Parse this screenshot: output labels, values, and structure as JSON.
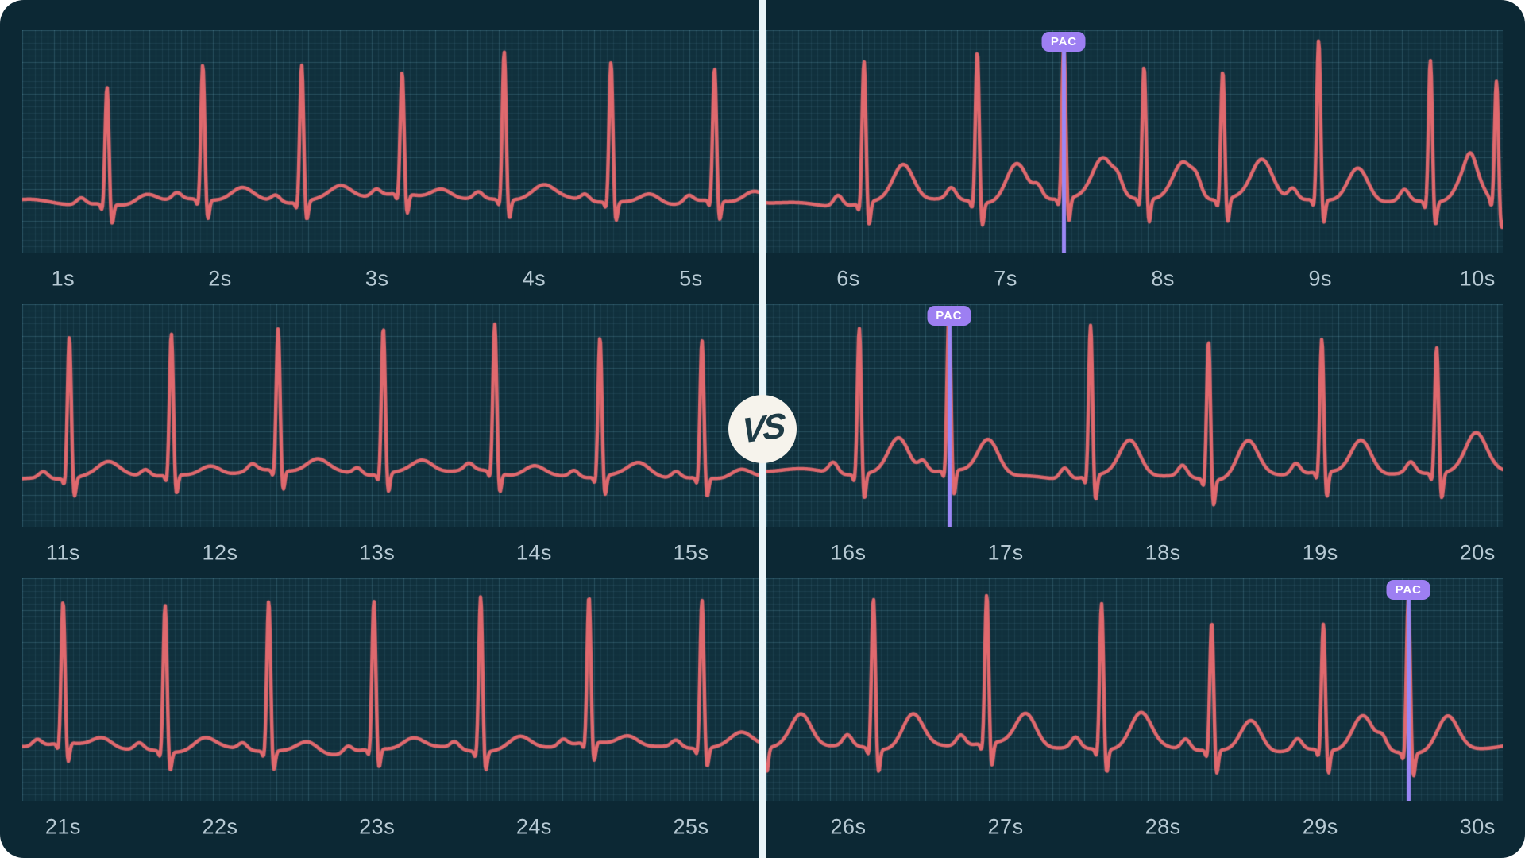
{
  "vs_badge": {
    "label": "VS"
  },
  "pac_annotation_label": "PAC",
  "colors": {
    "page_bg": "#ffffff",
    "card_bg": "#0c2834",
    "grid_bg": "#10303d",
    "grid_minor": "rgba(125,190,215,0.10)",
    "grid_major": "rgba(125,190,215,0.22)",
    "ecg_line": "#e0696e",
    "pac_line": "#9b87f5",
    "pac_badge_bg": "#9d7ff2",
    "pac_badge_text": "#ffffff",
    "divider": "#e9f4f8",
    "vs_circle_bg": "#f6f3ec",
    "vs_text": "#1e3b46",
    "tick_text": "#b6c9d3"
  },
  "chart_data": {
    "type": "line",
    "unit_x": "seconds",
    "grid": "on",
    "baseline_frac": 0.765,
    "panels": [
      {
        "id": "row1-left",
        "side": "left",
        "seed": 11,
        "t_start": 0.74,
        "t_end": 5.43,
        "tick_labels": [
          {
            "text": "1s",
            "t": 1
          },
          {
            "text": "2s",
            "t": 2
          },
          {
            "text": "3s",
            "t": 3
          },
          {
            "text": "4s",
            "t": 4
          },
          {
            "text": "5s",
            "t": 5
          }
        ],
        "p_amp": 0.03,
        "t_amp": 0.05,
        "s_amp": 0.1,
        "q_amp": 0.04,
        "noise": 0.016,
        "beats": [
          {
            "t": 1.28,
            "r": 0.53
          },
          {
            "t": 1.89,
            "r": 0.61
          },
          {
            "t": 2.52,
            "r": 0.62
          },
          {
            "t": 3.16,
            "r": 0.55
          },
          {
            "t": 3.81,
            "r": 0.67
          },
          {
            "t": 4.49,
            "r": 0.63
          },
          {
            "t": 5.15,
            "r": 0.6
          }
        ],
        "pacs": []
      },
      {
        "id": "row1-right",
        "side": "right",
        "seed": 21,
        "t_start": 5.48,
        "t_end": 10.16,
        "tick_labels": [
          {
            "text": "6s",
            "t": 6
          },
          {
            "text": "7s",
            "t": 7
          },
          {
            "text": "8s",
            "t": 8
          },
          {
            "text": "9s",
            "t": 9
          },
          {
            "text": "10s",
            "t": 10
          }
        ],
        "p_amp": 0.05,
        "t_amp": 0.165,
        "s_amp": 0.12,
        "q_amp": 0.045,
        "noise": 0.014,
        "beats": [
          {
            "t": 6.1,
            "r": 0.64
          },
          {
            "t": 6.82,
            "r": 0.68
          },
          {
            "t": 7.37,
            "r": 0.7
          },
          {
            "t": 7.88,
            "r": 0.6
          },
          {
            "t": 8.38,
            "r": 0.58
          },
          {
            "t": 8.99,
            "r": 0.72
          },
          {
            "t": 9.7,
            "r": 0.64
          },
          {
            "t": 10.12,
            "r": 0.55
          }
        ],
        "pacs": [
          {
            "t": 7.37,
            "label": "PAC"
          }
        ]
      },
      {
        "id": "row2-left",
        "side": "left",
        "seed": 12,
        "t_start": 10.74,
        "t_end": 15.43,
        "tick_labels": [
          {
            "text": "11s",
            "t": 11
          },
          {
            "text": "12s",
            "t": 12
          },
          {
            "text": "13s",
            "t": 13
          },
          {
            "text": "14s",
            "t": 14
          },
          {
            "text": "15s",
            "t": 15
          }
        ],
        "p_amp": 0.03,
        "t_amp": 0.05,
        "s_amp": 0.1,
        "q_amp": 0.04,
        "noise": 0.015,
        "beats": [
          {
            "t": 11.04,
            "r": 0.64
          },
          {
            "t": 11.69,
            "r": 0.64
          },
          {
            "t": 12.37,
            "r": 0.64
          },
          {
            "t": 13.04,
            "r": 0.66
          },
          {
            "t": 13.75,
            "r": 0.67
          },
          {
            "t": 14.42,
            "r": 0.63
          },
          {
            "t": 15.07,
            "r": 0.62
          }
        ],
        "pacs": []
      },
      {
        "id": "row2-right",
        "side": "right",
        "seed": 22,
        "t_start": 15.48,
        "t_end": 20.16,
        "tick_labels": [
          {
            "text": "16s",
            "t": 16
          },
          {
            "text": "17s",
            "t": 17
          },
          {
            "text": "18s",
            "t": 18
          },
          {
            "text": "19s",
            "t": 19
          },
          {
            "text": "20s",
            "t": 20
          }
        ],
        "p_amp": 0.05,
        "t_amp": 0.16,
        "s_amp": 0.13,
        "q_amp": 0.045,
        "noise": 0.014,
        "beats": [
          {
            "t": 16.07,
            "r": 0.66
          },
          {
            "t": 16.64,
            "r": 0.72
          },
          {
            "t": 17.54,
            "r": 0.68
          },
          {
            "t": 18.29,
            "r": 0.63
          },
          {
            "t": 19.01,
            "r": 0.6
          },
          {
            "t": 19.74,
            "r": 0.57
          }
        ],
        "pacs": [
          {
            "t": 16.64,
            "label": "PAC"
          }
        ]
      },
      {
        "id": "row3-left",
        "side": "left",
        "seed": 13,
        "t_start": 20.74,
        "t_end": 25.43,
        "tick_labels": [
          {
            "text": "21s",
            "t": 21
          },
          {
            "text": "22s",
            "t": 22
          },
          {
            "text": "23s",
            "t": 23
          },
          {
            "text": "24s",
            "t": 24
          },
          {
            "text": "25s",
            "t": 25
          }
        ],
        "p_amp": 0.03,
        "t_amp": 0.05,
        "s_amp": 0.1,
        "q_amp": 0.04,
        "noise": 0.015,
        "beats": [
          {
            "t": 21.0,
            "r": 0.64
          },
          {
            "t": 21.65,
            "r": 0.66
          },
          {
            "t": 22.31,
            "r": 0.68
          },
          {
            "t": 22.98,
            "r": 0.67
          },
          {
            "t": 23.66,
            "r": 0.7
          },
          {
            "t": 24.35,
            "r": 0.66
          },
          {
            "t": 25.07,
            "r": 0.67
          }
        ],
        "pacs": []
      },
      {
        "id": "row3-right",
        "side": "right",
        "seed": 23,
        "t_start": 25.48,
        "t_end": 30.16,
        "tick_labels": [
          {
            "text": "26s",
            "t": 26
          },
          {
            "text": "27s",
            "t": 27
          },
          {
            "text": "28s",
            "t": 28
          },
          {
            "text": "29s",
            "t": 29
          },
          {
            "text": "30s",
            "t": 30
          }
        ],
        "p_amp": 0.048,
        "t_amp": 0.15,
        "s_amp": 0.12,
        "q_amp": 0.045,
        "noise": 0.014,
        "beats": [
          {
            "t": 25.45,
            "r": 0.4
          },
          {
            "t": 26.16,
            "r": 0.68
          },
          {
            "t": 26.88,
            "r": 0.67
          },
          {
            "t": 27.61,
            "r": 0.66
          },
          {
            "t": 28.31,
            "r": 0.58
          },
          {
            "t": 29.02,
            "r": 0.57
          },
          {
            "t": 29.56,
            "r": 0.7
          }
        ],
        "pacs": [
          {
            "t": 29.56,
            "label": "PAC"
          }
        ]
      }
    ]
  }
}
